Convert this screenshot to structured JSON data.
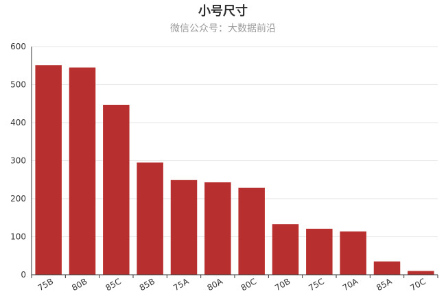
{
  "header": {
    "title": "小号尺寸",
    "subtitle": "微信公众号：大数据前沿"
  },
  "colors": {
    "bar": "#b82f2f",
    "grid": "#e6e6e6",
    "axis": "#333333"
  },
  "chart_data": {
    "type": "bar",
    "title": "小号尺寸",
    "subtitle": "微信公众号：大数据前沿",
    "categories": [
      "75B",
      "80B",
      "85C",
      "85B",
      "75A",
      "80A",
      "80C",
      "70B",
      "75C",
      "70A",
      "85A",
      "70C"
    ],
    "values": [
      551,
      545,
      447,
      295,
      249,
      243,
      229,
      133,
      121,
      114,
      35,
      10
    ],
    "yticks": [
      0,
      100,
      200,
      300,
      400,
      500,
      600
    ],
    "ylim": [
      0,
      600
    ],
    "grid": true,
    "xlabel_rotation": "rotated"
  }
}
